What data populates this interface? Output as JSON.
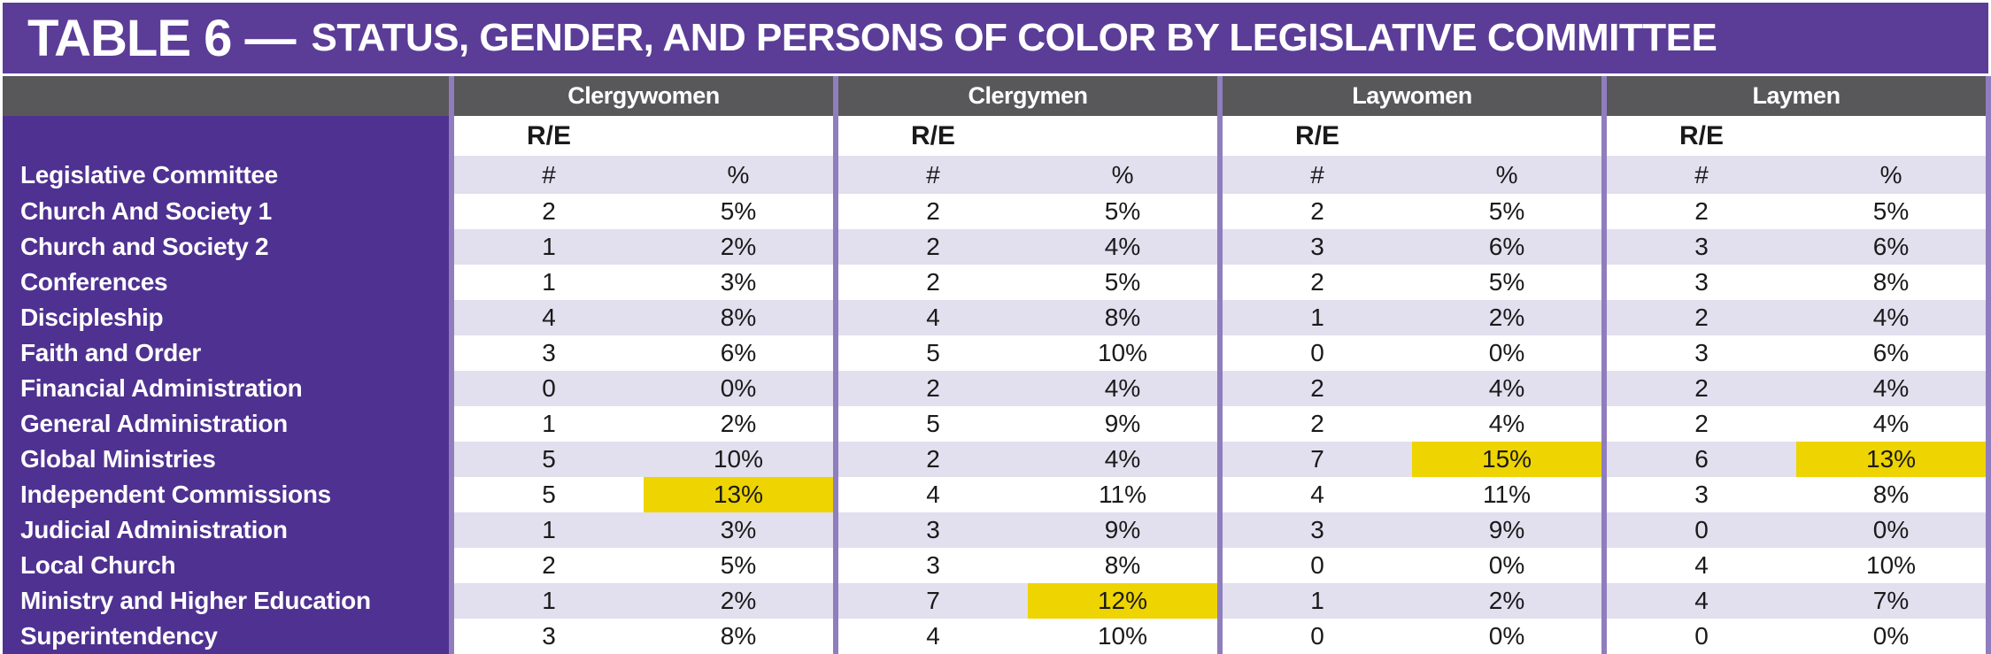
{
  "title": {
    "lead": "TABLE 6 —",
    "subtitle": "STATUS, GENDER, AND PERSONS OF COLOR BY LEGISLATIVE COMMITTEE"
  },
  "colors": {
    "title_bar": "#5B3D97",
    "header_gray": "#58575A",
    "row_label_purple": "#4F3191",
    "stripe_lavender": "#E2DFEE",
    "highlight_yellow": "#EED400",
    "separator_purple": "#8F7DBE",
    "text_dark": "#1A1A1A"
  },
  "chart_data": {
    "type": "table",
    "title": "TABLE 6 — STATUS, GENDER, AND PERSONS OF COLOR BY LEGISLATIVE COMMITTEE",
    "column_groups": [
      "Clergywomen",
      "Clergymen",
      "Laywomen",
      "Laymen"
    ],
    "race_ethnicity_label": "R/E",
    "sub_columns": [
      "#",
      "%"
    ],
    "row_header": "Legislative Committee",
    "highlight_note": "highlight array lists group indexes (0=Clergywomen,1=Clergymen,2=Laywomen,3=Laymen) whose % cell is yellow",
    "rows": [
      {
        "committee": "Church And Society 1",
        "values": [
          [
            "2",
            "5%"
          ],
          [
            "2",
            "5%"
          ],
          [
            "2",
            "5%"
          ],
          [
            "2",
            "5%"
          ]
        ],
        "highlight": []
      },
      {
        "committee": "Church and Society 2",
        "values": [
          [
            "1",
            "2%"
          ],
          [
            "2",
            "4%"
          ],
          [
            "3",
            "6%"
          ],
          [
            "3",
            "6%"
          ]
        ],
        "highlight": []
      },
      {
        "committee": "Conferences",
        "values": [
          [
            "1",
            "3%"
          ],
          [
            "2",
            "5%"
          ],
          [
            "2",
            "5%"
          ],
          [
            "3",
            "8%"
          ]
        ],
        "highlight": []
      },
      {
        "committee": "Discipleship",
        "values": [
          [
            "4",
            "8%"
          ],
          [
            "4",
            "8%"
          ],
          [
            "1",
            "2%"
          ],
          [
            "2",
            "4%"
          ]
        ],
        "highlight": []
      },
      {
        "committee": "Faith and Order",
        "values": [
          [
            "3",
            "6%"
          ],
          [
            "5",
            "10%"
          ],
          [
            "0",
            "0%"
          ],
          [
            "3",
            "6%"
          ]
        ],
        "highlight": []
      },
      {
        "committee": "Financial Administration",
        "values": [
          [
            "0",
            "0%"
          ],
          [
            "2",
            "4%"
          ],
          [
            "2",
            "4%"
          ],
          [
            "2",
            "4%"
          ]
        ],
        "highlight": []
      },
      {
        "committee": "General Administration",
        "values": [
          [
            "1",
            "2%"
          ],
          [
            "5",
            "9%"
          ],
          [
            "2",
            "4%"
          ],
          [
            "2",
            "4%"
          ]
        ],
        "highlight": []
      },
      {
        "committee": "Global Ministries",
        "values": [
          [
            "5",
            "10%"
          ],
          [
            "2",
            "4%"
          ],
          [
            "7",
            "15%"
          ],
          [
            "6",
            "13%"
          ]
        ],
        "highlight": [
          2,
          3
        ]
      },
      {
        "committee": "Independent Commissions",
        "values": [
          [
            "5",
            "13%"
          ],
          [
            "4",
            "11%"
          ],
          [
            "4",
            "11%"
          ],
          [
            "3",
            "8%"
          ]
        ],
        "highlight": [
          0
        ]
      },
      {
        "committee": "Judicial Administration",
        "values": [
          [
            "1",
            "3%"
          ],
          [
            "3",
            "9%"
          ],
          [
            "3",
            "9%"
          ],
          [
            "0",
            "0%"
          ]
        ],
        "highlight": []
      },
      {
        "committee": "Local Church",
        "values": [
          [
            "2",
            "5%"
          ],
          [
            "3",
            "8%"
          ],
          [
            "0",
            "0%"
          ],
          [
            "4",
            "10%"
          ]
        ],
        "highlight": []
      },
      {
        "committee": "Ministry and Higher Education",
        "values": [
          [
            "1",
            "2%"
          ],
          [
            "7",
            "12%"
          ],
          [
            "1",
            "2%"
          ],
          [
            "4",
            "7%"
          ]
        ],
        "highlight": [
          1
        ]
      },
      {
        "committee": "Superintendency",
        "values": [
          [
            "3",
            "8%"
          ],
          [
            "4",
            "10%"
          ],
          [
            "0",
            "0%"
          ],
          [
            "0",
            "0%"
          ]
        ],
        "highlight": []
      }
    ]
  }
}
